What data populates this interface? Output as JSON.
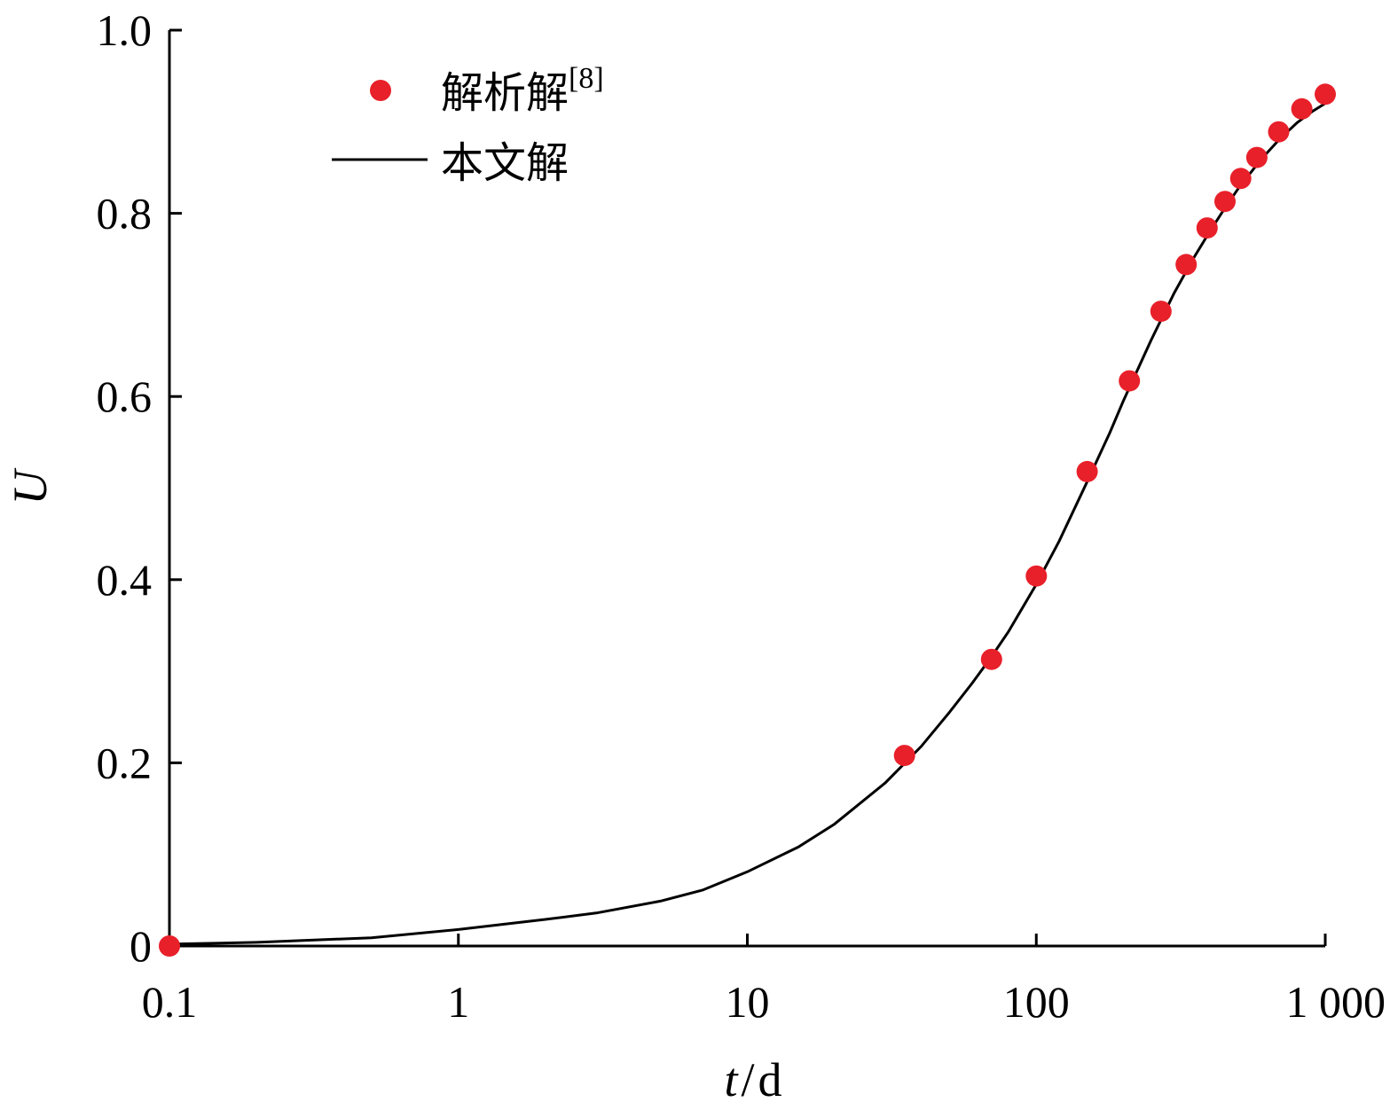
{
  "chart_data": {
    "type": "scatter",
    "xscale": "log",
    "xlim": [
      0.1,
      1000
    ],
    "ylim": [
      0,
      1.0
    ],
    "xlabel": {
      "var": "t",
      "sep": "/",
      "unit": "d"
    },
    "ylabel": "U",
    "x_ticks": [
      {
        "value": 0.1,
        "label": "0.1"
      },
      {
        "value": 1,
        "label": "1"
      },
      {
        "value": 10,
        "label": "10"
      },
      {
        "value": 100,
        "label": "100"
      },
      {
        "value": 1000,
        "label": "1 000"
      }
    ],
    "y_ticks": [
      {
        "value": 0,
        "label": "0"
      },
      {
        "value": 0.2,
        "label": "0.2"
      },
      {
        "value": 0.4,
        "label": "0.4"
      },
      {
        "value": 0.6,
        "label": "0.6"
      },
      {
        "value": 0.8,
        "label": "0.8"
      },
      {
        "value": 1.0,
        "label": "1.0"
      }
    ],
    "legend_position": "top-left",
    "series": [
      {
        "name": "解析解",
        "name_sup": "[8]",
        "kind": "points",
        "color": "#e8202a",
        "x": [
          0.1,
          35,
          70,
          100,
          150,
          210,
          270,
          330,
          390,
          450,
          510,
          580,
          690,
          830,
          1000
        ],
        "y": [
          0.0,
          0.208,
          0.313,
          0.404,
          0.518,
          0.617,
          0.693,
          0.744,
          0.784,
          0.813,
          0.838,
          0.861,
          0.889,
          0.914,
          0.93
        ]
      },
      {
        "name": "本文解",
        "kind": "line",
        "color": "#000000",
        "x": [
          0.1,
          0.2,
          0.5,
          1,
          2,
          3,
          5,
          7,
          10,
          15,
          20,
          30,
          40,
          50,
          60,
          70,
          80,
          100,
          120,
          150,
          180,
          200,
          250,
          300,
          350,
          400,
          450,
          500,
          600,
          700,
          800,
          900,
          1000
        ],
        "y": [
          0.002,
          0.004,
          0.009,
          0.018,
          0.029,
          0.036,
          0.049,
          0.061,
          0.081,
          0.108,
          0.133,
          0.178,
          0.218,
          0.255,
          0.287,
          0.316,
          0.343,
          0.395,
          0.442,
          0.507,
          0.561,
          0.595,
          0.662,
          0.713,
          0.751,
          0.781,
          0.806,
          0.827,
          0.859,
          0.882,
          0.899,
          0.911,
          0.92
        ]
      }
    ]
  }
}
